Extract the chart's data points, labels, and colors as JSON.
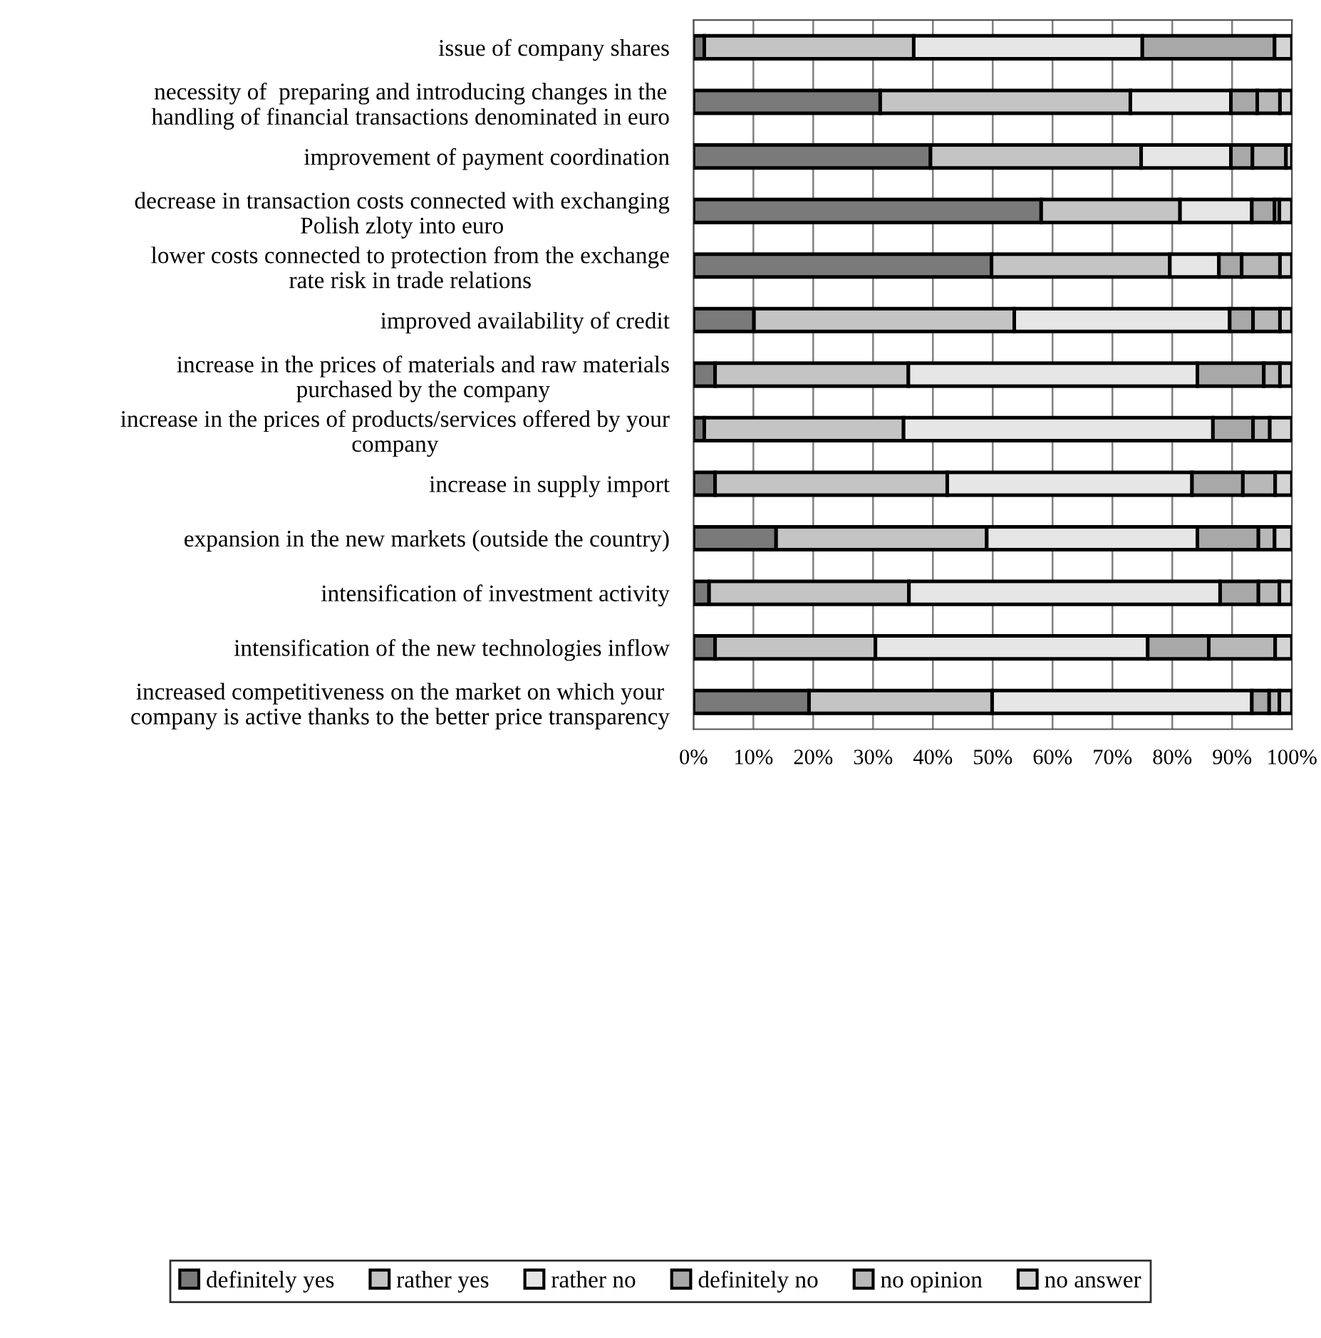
{
  "chart_data": {
    "type": "bar",
    "orientation": "horizontal",
    "stacked": true,
    "categories": [
      "issue of company shares",
      "necessity of  preparing and introducing changes in the\nhandling of financial transactions denominated in euro",
      "improvement of payment coordination",
      "decrease in transaction costs connected with exchanging\nPolish zloty into euro",
      "lower costs connected to protection from the exchange\nrate risk in trade relations",
      "improved availability of credit",
      "increase in the prices of materials and raw materials\npurchased by the company",
      "increase in the prices of products/services offered by your\ncompany",
      "increase in supply import",
      "expansion in the new markets (outside the country)",
      "intensification of investment activity",
      "intensification of the new technologies inflow",
      "increased competitiveness on the market on which your\ncompany is active thanks to the better price transparency"
    ],
    "series": [
      {
        "name": "definitely yes",
        "color": "#7a7a7a",
        "values": [
          1.8,
          31.2,
          39.6,
          58.1,
          49.8,
          10.1,
          3.6,
          1.8,
          3.6,
          13.8,
          2.6,
          3.6,
          19.3
        ]
      },
      {
        "name": "rather yes",
        "color": "#c4c4c4",
        "values": [
          35.0,
          41.8,
          35.2,
          23.2,
          29.8,
          43.5,
          32.3,
          33.3,
          38.8,
          35.2,
          33.4,
          26.8,
          30.6
        ]
      },
      {
        "name": "rather no",
        "color": "#e6e6e6",
        "values": [
          38.2,
          16.8,
          15.0,
          12.0,
          8.2,
          36.0,
          48.3,
          51.7,
          40.9,
          35.2,
          52.0,
          45.5,
          43.4
        ]
      },
      {
        "name": "definitely no",
        "color": "#a8a8a8",
        "values": [
          22.1,
          4.4,
          3.6,
          3.8,
          3.8,
          3.9,
          11.1,
          6.7,
          8.5,
          10.2,
          6.4,
          10.2,
          2.9
        ]
      },
      {
        "name": "no opinion",
        "color": "#b8b8b8",
        "values": [
          null,
          3.8,
          5.6,
          0.8,
          6.4,
          4.5,
          2.7,
          2.8,
          5.4,
          2.7,
          3.5,
          11.1,
          1.7
        ]
      },
      {
        "name": "no answer",
        "color": "#d4d4d4",
        "values": [
          2.9,
          2.0,
          1.0,
          2.1,
          2.0,
          2.0,
          2.0,
          3.7,
          2.8,
          2.9,
          2.1,
          2.8,
          2.1
        ]
      }
    ],
    "xlim": [
      0,
      100
    ],
    "xticks": [
      {
        "value": 0,
        "label": "0%"
      },
      {
        "value": 10,
        "label": "10%"
      },
      {
        "value": 20,
        "label": "20%"
      },
      {
        "value": 30,
        "label": "30%"
      },
      {
        "value": 40,
        "label": "40%"
      },
      {
        "value": 50,
        "label": "50%"
      },
      {
        "value": 60,
        "label": "60%"
      },
      {
        "value": 70,
        "label": "70%"
      },
      {
        "value": 80,
        "label": "80%"
      },
      {
        "value": 90,
        "label": "90%"
      },
      {
        "value": 100,
        "label": "100%"
      }
    ],
    "grid": "x",
    "legend": "bottom"
  }
}
